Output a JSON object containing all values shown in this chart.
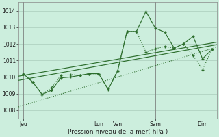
{
  "xlabel": "Pression niveau de la mer( hPa )",
  "bg_color": "#cceedd",
  "grid_color": "#aaccbb",
  "line_color": "#2d6e2d",
  "ylim": [
    1007.5,
    1014.5
  ],
  "xlim": [
    0,
    21
  ],
  "yticks": [
    1008,
    1009,
    1010,
    1011,
    1012,
    1013,
    1014
  ],
  "day_labels": [
    "Jeu",
    "Lun",
    "Ven",
    "Sam",
    "Dim"
  ],
  "day_positions": [
    0.5,
    8.5,
    10.5,
    14.5,
    19.5
  ],
  "vline_positions": [
    0.5,
    8.5,
    10.5,
    14.5,
    19.5
  ],
  "trend1_x": [
    0,
    21
  ],
  "trend1_y": [
    1009.8,
    1011.95
  ],
  "trend2_x": [
    0,
    21
  ],
  "trend2_y": [
    1010.05,
    1012.1
  ],
  "jagged1_x": [
    0.5,
    1.5,
    2.5,
    3.5,
    4.5,
    5.5,
    6.5,
    7.5,
    8.5,
    9.5,
    10.5,
    11.5,
    12.5,
    13.5,
    14.5,
    15.5,
    16.5,
    17.5,
    18.5,
    19.5,
    20.5
  ],
  "jagged1_y": [
    1010.2,
    1009.7,
    1008.95,
    1009.35,
    1010.1,
    1010.15,
    1010.1,
    1010.2,
    1010.2,
    1009.3,
    1010.4,
    1012.75,
    1012.75,
    1011.5,
    1011.7,
    1011.85,
    1011.75,
    1012.0,
    1011.3,
    1010.45,
    1011.65
  ],
  "jagged2_x": [
    0.5,
    1.5,
    2.5,
    3.5,
    4.5,
    5.5,
    6.5,
    7.5,
    8.5,
    9.5,
    10.5,
    11.5,
    12.5,
    13.5,
    14.5,
    15.5,
    16.5,
    17.5,
    18.5,
    19.5,
    20.5
  ],
  "jagged2_y": [
    1010.2,
    1009.7,
    1008.95,
    1009.2,
    1009.95,
    1010.0,
    1010.1,
    1010.2,
    1010.2,
    1009.25,
    1010.35,
    1012.75,
    1012.75,
    1013.95,
    1012.95,
    1012.7,
    1011.75,
    1012.0,
    1012.45,
    1011.1,
    1011.65
  ],
  "scatter1_x": [
    0,
    21
  ],
  "scatter1_y": [
    1008.2,
    1011.8
  ],
  "font_size_ticks": 5.5,
  "font_size_xlabel": 6.5
}
